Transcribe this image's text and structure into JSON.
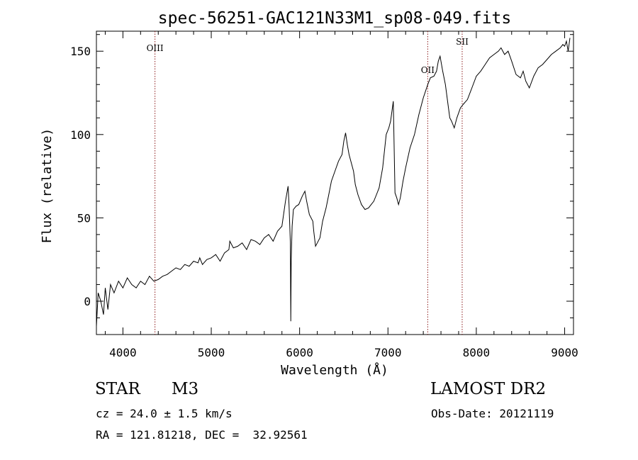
{
  "chart_data": {
    "type": "line",
    "title": "spec-56251-GAC121N33M1_sp08-049.fits",
    "xlabel": "Wavelength (Å)",
    "ylabel": "Flux (relative)",
    "xlim": [
      3700,
      9100
    ],
    "ylim": [
      -20,
      162
    ],
    "x_ticks": [
      4000,
      5000,
      6000,
      7000,
      8000,
      9000
    ],
    "y_ticks": [
      0,
      50,
      100,
      150
    ],
    "x_tick_labels": [
      "4000",
      "5000",
      "6000",
      "7000",
      "8000",
      "9000"
    ],
    "y_tick_labels": [
      "0",
      "50",
      "100",
      "150"
    ],
    "grid": false,
    "line_color": "#000000",
    "marker_color": "#8b1a1a",
    "series": [
      {
        "x": [
          3700,
          3720,
          3750,
          3780,
          3800,
          3830,
          3860,
          3900,
          3950,
          4000,
          4050,
          4100,
          4150,
          4200,
          4250,
          4300,
          4350,
          4400,
          4450,
          4500,
          4550,
          4600,
          4650,
          4700,
          4750,
          4800,
          4850,
          4870,
          4900,
          4950,
          5000,
          5050,
          5100,
          5150,
          5200,
          5210,
          5250,
          5300,
          5350,
          5400,
          5450,
          5500,
          5550,
          5600,
          5650,
          5700,
          5750,
          5800,
          5840,
          5870,
          5880,
          5895,
          5900,
          5905,
          5915,
          5930,
          5960,
          5990,
          6030,
          6060,
          6080,
          6110,
          6150,
          6160,
          6180,
          6200,
          6230,
          6260,
          6300,
          6330,
          6360,
          6400,
          6440,
          6480,
          6500,
          6520,
          6540,
          6560,
          6580,
          6610,
          6630,
          6660,
          6700,
          6740,
          6780,
          6810,
          6840,
          6870,
          6900,
          6940,
          6980,
          7010,
          7030,
          7060,
          7080,
          7100,
          7120,
          7140,
          7170,
          7200,
          7250,
          7300,
          7350,
          7400,
          7450,
          7480,
          7520,
          7550,
          7570,
          7590,
          7620,
          7650,
          7680,
          7700,
          7720,
          7750,
          7780,
          7820,
          7850,
          7900,
          7950,
          8000,
          8050,
          8100,
          8150,
          8200,
          8250,
          8280,
          8320,
          8360,
          8400,
          8450,
          8500,
          8530,
          8560,
          8600,
          8650,
          8700,
          8750,
          8800,
          8850,
          8900,
          8950,
          8980,
          9000,
          9020,
          9040,
          9060
        ],
        "y": [
          -15,
          5,
          0,
          -8,
          8,
          -5,
          10,
          5,
          12,
          8,
          14,
          10,
          8,
          12,
          10,
          15,
          12,
          13,
          15,
          16,
          18,
          20,
          19,
          22,
          21,
          24,
          23,
          26,
          22,
          25,
          26,
          28,
          24,
          29,
          31,
          36,
          32,
          33,
          35,
          31,
          37,
          36,
          34,
          38,
          40,
          36,
          42,
          45,
          60,
          69,
          58,
          35,
          -12,
          25,
          45,
          55,
          57,
          58,
          63,
          66,
          60,
          52,
          48,
          42,
          33,
          35,
          38,
          48,
          56,
          64,
          72,
          78,
          84,
          88,
          96,
          101,
          94,
          88,
          84,
          78,
          70,
          64,
          58,
          55,
          56,
          58,
          60,
          64,
          68,
          80,
          100,
          104,
          108,
          120,
          65,
          62,
          58,
          62,
          72,
          80,
          92,
          100,
          112,
          122,
          130,
          134,
          135,
          138,
          144,
          147,
          138,
          130,
          118,
          110,
          108,
          104,
          110,
          116,
          118,
          121,
          128,
          135,
          138,
          142,
          146,
          148,
          150,
          152,
          148,
          150,
          144,
          136,
          134,
          138,
          132,
          128,
          135,
          140,
          142,
          145,
          148,
          150,
          152,
          154,
          153,
          156,
          150,
          158
        ]
      }
    ],
    "annotations": [
      {
        "text": "OIII",
        "x": 4363,
        "label_y": 150
      },
      {
        "text": "OII",
        "x": 7450,
        "label_y": 137
      },
      {
        "text": "SII",
        "x": 7840,
        "label_y": 154
      }
    ]
  },
  "info": {
    "star_class": "STAR",
    "subclass": "M3",
    "velocity": "cz = 24.0 ± 1.5 km/s",
    "coords": "RA = 121.81218, DEC =  32.92561",
    "survey": "LAMOST DR2",
    "obs_date": "Obs-Date: 20121119"
  }
}
